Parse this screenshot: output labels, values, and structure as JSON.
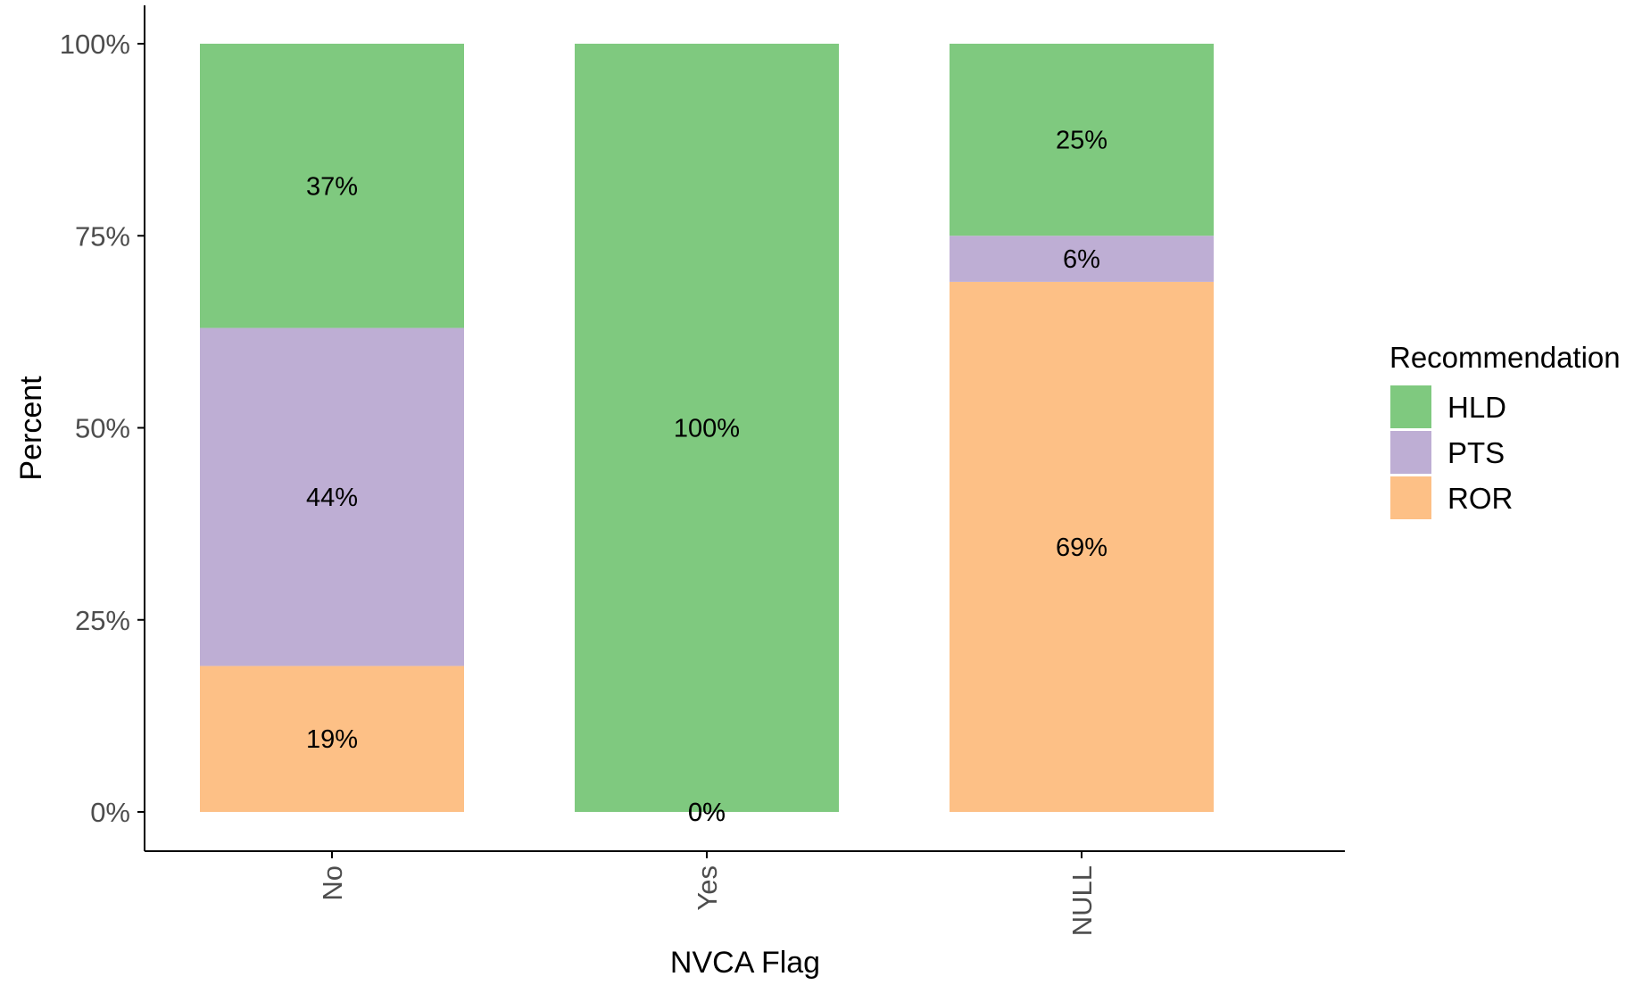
{
  "chart_data": {
    "type": "bar",
    "stacked": true,
    "percent": true,
    "xlabel": "NVCA Flag",
    "ylabel": "Percent",
    "categories": [
      "No",
      "Yes",
      "NULL"
    ],
    "ylim": [
      0,
      1
    ],
    "yticks": [
      {
        "value": 0,
        "label": "0%"
      },
      {
        "value": 0.25,
        "label": "25%"
      },
      {
        "value": 0.5,
        "label": "50%"
      },
      {
        "value": 0.75,
        "label": "75%"
      },
      {
        "value": 1,
        "label": "100%"
      }
    ],
    "legend": {
      "title": "Recommendation",
      "position": "right"
    },
    "grid": false,
    "series": [
      {
        "name": "HLD",
        "color": "#7fc97f",
        "values": [
          0.37,
          1.0,
          0.25
        ],
        "labels": [
          "37%",
          "100%",
          "25%"
        ]
      },
      {
        "name": "PTS",
        "color": "#beaed4",
        "values": [
          0.44,
          0.0,
          0.06
        ],
        "labels": [
          "44%",
          "0%",
          "6%"
        ]
      },
      {
        "name": "ROR",
        "color": "#fdc086",
        "values": [
          0.19,
          0.0,
          0.69
        ],
        "labels": [
          "19%",
          "0%",
          "69%"
        ]
      }
    ]
  }
}
